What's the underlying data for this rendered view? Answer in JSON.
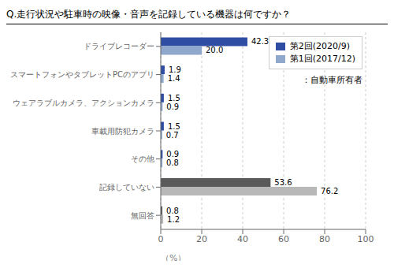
{
  "chart_data": {
    "type": "bar",
    "orientation": "horizontal",
    "title": "Q.走行状況や駐車時の映像・音声を記録している機器は何ですか？",
    "xlabel": "（%）",
    "annotation": "：自動車所有者",
    "categories": [
      "ドライブレコーダー",
      "スマートフォンやタブレットPCのアプリ",
      "ウェアラブルカメラ、アクションカメラ",
      "車載用防犯カメラ",
      "その他",
      "記録していない",
      "無回答"
    ],
    "series": [
      {
        "name": "第2回(2020/9)",
        "color": "#2E4DA3",
        "colors": [
          "#2E4DA3",
          "#2E4DA3",
          "#2E4DA3",
          "#2E4DA3",
          "#2E4DA3",
          "#5A5A5A",
          "#5A5A5A"
        ],
        "values": [
          42.3,
          1.9,
          1.5,
          1.5,
          0.9,
          53.6,
          0.8
        ],
        "value_labels": [
          "42.3",
          "1.9",
          "1.5",
          "1.5",
          "0.9",
          "53.6",
          "0.8"
        ]
      },
      {
        "name": "第1回(2017/12)",
        "color": "#8FA8CC",
        "colors": [
          "#8FA8CC",
          "#8FA8CC",
          "#8FA8CC",
          "#8FA8CC",
          "#8FA8CC",
          "#B8B8B8",
          "#B8B8B8"
        ],
        "values": [
          20.0,
          1.4,
          0.9,
          0.7,
          0.8,
          76.2,
          1.2
        ],
        "value_labels": [
          "20.0",
          "1.4",
          "0.9",
          "0.7",
          "0.8",
          "76.2",
          "1.2"
        ]
      }
    ],
    "xlim": [
      0,
      100
    ],
    "xticks": [
      0,
      20,
      40,
      60,
      80,
      100
    ],
    "grid": true,
    "legend": "upper right",
    "data_labels": true
  }
}
